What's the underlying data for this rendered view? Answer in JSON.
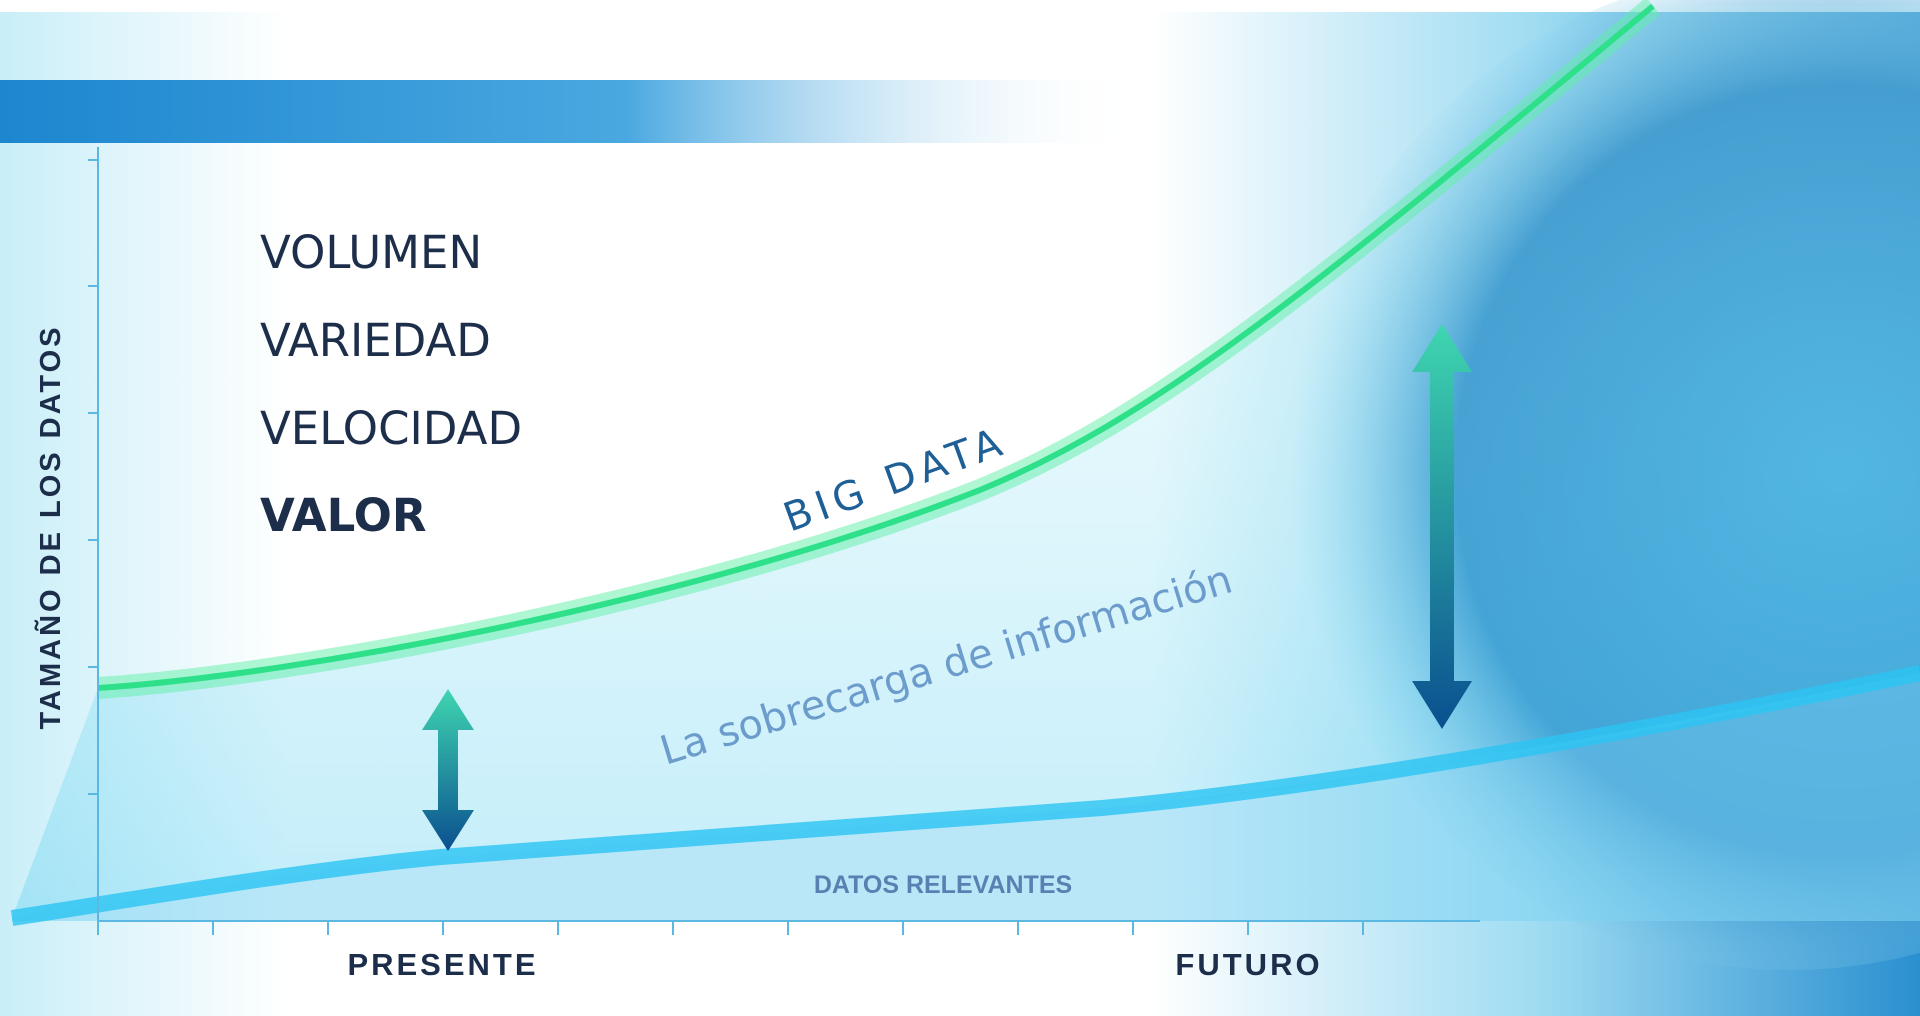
{
  "terms": [
    "VOLUMEN",
    "VARIEDAD",
    "VELOCIDAD",
    "VALOR"
  ],
  "curves": {
    "big_data": "BIG DATA",
    "overload": "La sobrecarga de información",
    "relevant": "DATOS RELEVANTES"
  },
  "axes": {
    "y_label": "TAMAÑO DE LOS DATOS",
    "x_labels": [
      "PRESENTE",
      "FUTURO"
    ]
  }
}
